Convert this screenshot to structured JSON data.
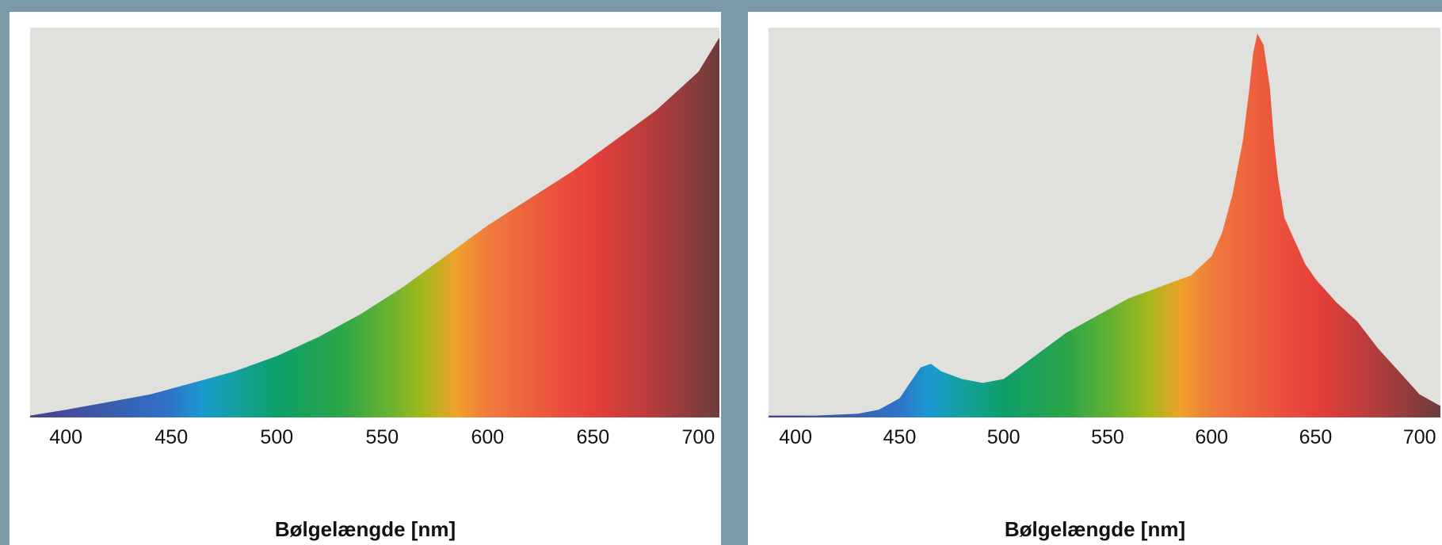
{
  "charts": [
    {
      "id": "left",
      "chart_data": {
        "type": "area",
        "xlabel": "Bølgelængde [nm]",
        "ylabel": "",
        "title": "",
        "xlim": [
          383,
          710
        ],
        "ylim": [
          0,
          1
        ],
        "xticks": [
          400,
          450,
          500,
          550,
          600,
          650,
          700
        ],
        "grid": false,
        "series": [
          {
            "x": [
              383,
              400,
              420,
              440,
              460,
              480,
              500,
              520,
              540,
              560,
              580,
              600,
              620,
              640,
              660,
              680,
              700,
              710
            ],
            "values": [
              0.005,
              0.02,
              0.04,
              0.06,
              0.09,
              0.12,
              0.16,
              0.21,
              0.27,
              0.34,
              0.42,
              0.5,
              0.57,
              0.64,
              0.72,
              0.8,
              0.9,
              0.99
            ]
          }
        ],
        "background": "#e0e0dd",
        "fill": "spectrum-gradient"
      }
    },
    {
      "id": "right",
      "chart_data": {
        "type": "area",
        "xlabel": "Bølgelængde [nm]",
        "ylabel": "",
        "title": "",
        "xlim": [
          387,
          710
        ],
        "ylim": [
          0,
          1
        ],
        "xticks": [
          400,
          450,
          500,
          550,
          600,
          650,
          700
        ],
        "grid": false,
        "series": [
          {
            "x": [
              387,
              410,
              430,
              440,
              450,
              455,
              460,
              465,
              470,
              480,
              490,
              500,
              510,
              520,
              530,
              540,
              550,
              560,
              570,
              580,
              590,
              600,
              605,
              610,
              615,
              618,
              620,
              622,
              625,
              628,
              630,
              632,
              635,
              640,
              645,
              650,
              660,
              670,
              680,
              690,
              700,
              710
            ],
            "values": [
              0.005,
              0.005,
              0.01,
              0.02,
              0.05,
              0.09,
              0.13,
              0.14,
              0.12,
              0.1,
              0.09,
              0.1,
              0.14,
              0.18,
              0.22,
              0.25,
              0.28,
              0.31,
              0.33,
              0.35,
              0.37,
              0.42,
              0.48,
              0.58,
              0.72,
              0.85,
              0.95,
              1.0,
              0.97,
              0.86,
              0.72,
              0.62,
              0.52,
              0.46,
              0.4,
              0.36,
              0.3,
              0.25,
              0.18,
              0.12,
              0.06,
              0.03
            ]
          }
        ],
        "background": "#e0e0dd",
        "fill": "spectrum-gradient"
      }
    }
  ],
  "spectrum_colors": [
    {
      "nm": 380,
      "color": "#4a3f8c"
    },
    {
      "nm": 450,
      "color": "#2e74c9"
    },
    {
      "nm": 465,
      "color": "#1a9bd0"
    },
    {
      "nm": 480,
      "color": "#13a0a0"
    },
    {
      "nm": 500,
      "color": "#0ea06a"
    },
    {
      "nm": 530,
      "color": "#2aa548"
    },
    {
      "nm": 555,
      "color": "#6db42e"
    },
    {
      "nm": 570,
      "color": "#a6b81c"
    },
    {
      "nm": 585,
      "color": "#f0a12a"
    },
    {
      "nm": 600,
      "color": "#ef7b3c"
    },
    {
      "nm": 625,
      "color": "#ec5a3c"
    },
    {
      "nm": 650,
      "color": "#e6403b"
    },
    {
      "nm": 680,
      "color": "#b23c3c"
    },
    {
      "nm": 710,
      "color": "#6d3c3c"
    }
  ]
}
